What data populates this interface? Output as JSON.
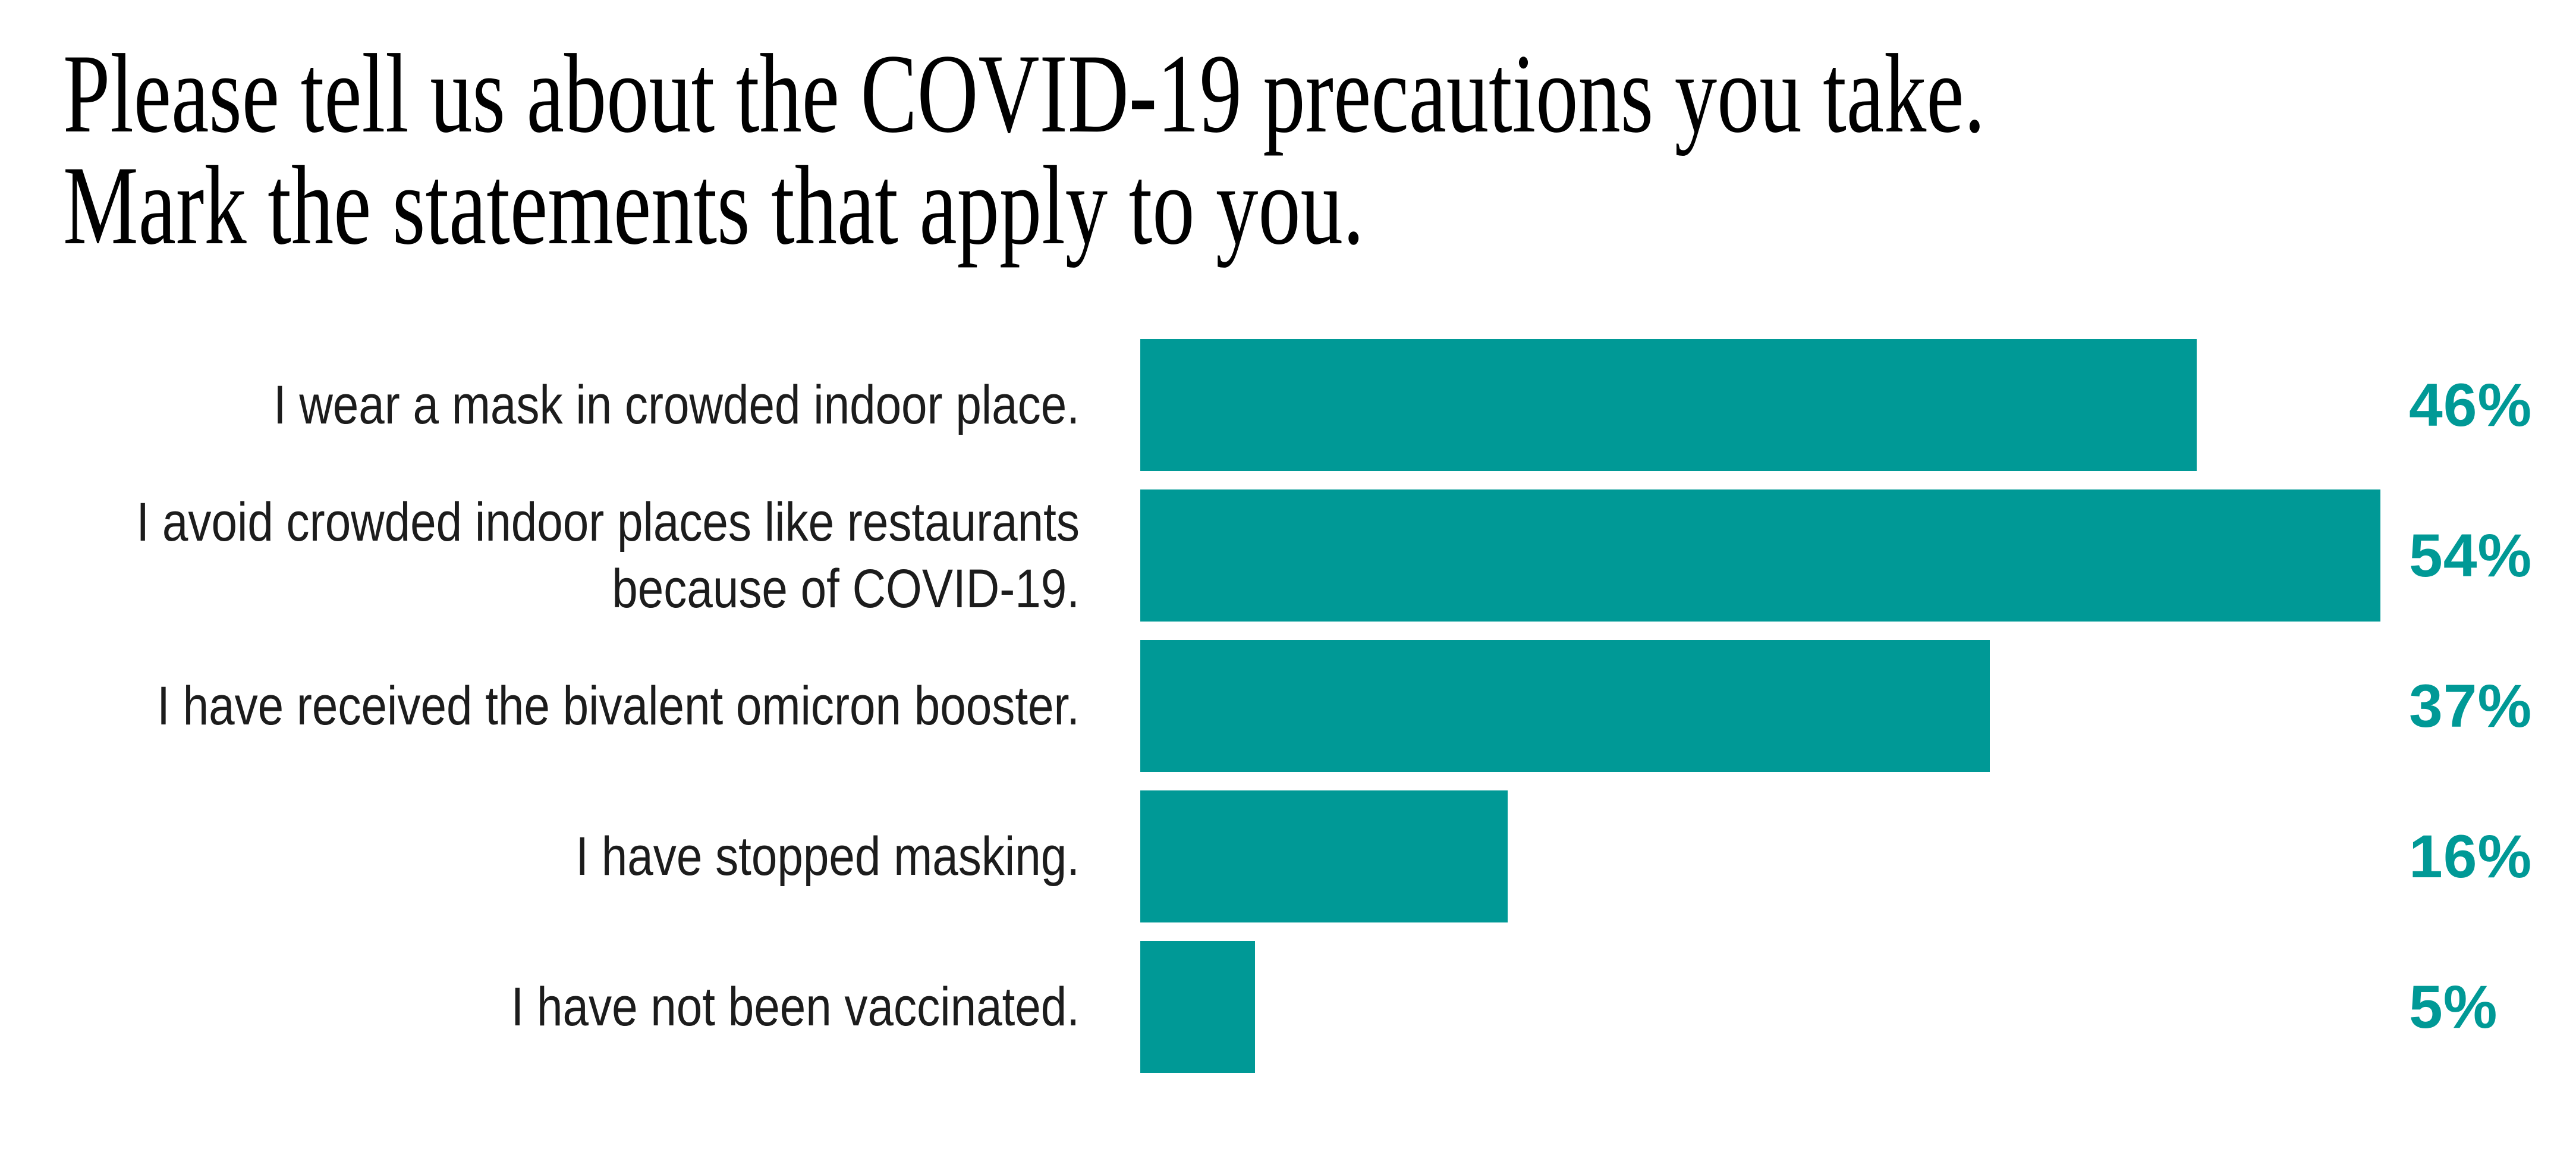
{
  "title": {
    "line1": "Please tell us about the COVID-19 precautions you take.",
    "line2": "Mark the statements that apply to you."
  },
  "colors": {
    "background": "#FFFFFF",
    "bar": "#009996",
    "value_label_text": "#009996",
    "title_text": "#000000",
    "category_label_text": "#1C1C1C"
  },
  "chart_data": {
    "type": "bar",
    "orientation": "horizontal",
    "title": "Please tell us about the COVID-19 precautions you take. Mark the statements that apply to you.",
    "categories": [
      "I wear a mask in crowded indoor place.",
      "I avoid crowded indoor places like restaurants because of COVID-19.",
      "I have received the bivalent omicron booster.",
      "I have stopped masking.",
      "I have not been vaccinated."
    ],
    "values": [
      46,
      54,
      37,
      16,
      5
    ],
    "value_labels": [
      "46%",
      "54%",
      "37%",
      "16%",
      "5%"
    ],
    "unit": "%",
    "xlim": [
      0,
      54
    ],
    "xlabel": "",
    "ylabel": "",
    "grid": false,
    "axes_shown": false,
    "legend_position": "none",
    "value_label_position": "right-of-bar",
    "category_label_position": "left-of-bar-right-aligned"
  },
  "rows": [
    {
      "label_lines": [
        "I wear a mask in crowded indoor place."
      ],
      "value_label": "46%"
    },
    {
      "label_lines": [
        "I avoid crowded indoor places like restaurants",
        "because of COVID-19."
      ],
      "value_label": "54%"
    },
    {
      "label_lines": [
        "I have received the bivalent omicron booster."
      ],
      "value_label": "37%"
    },
    {
      "label_lines": [
        "I have stopped masking."
      ],
      "value_label": "16%"
    },
    {
      "label_lines": [
        "I have not been vaccinated."
      ],
      "value_label": "5%"
    }
  ]
}
